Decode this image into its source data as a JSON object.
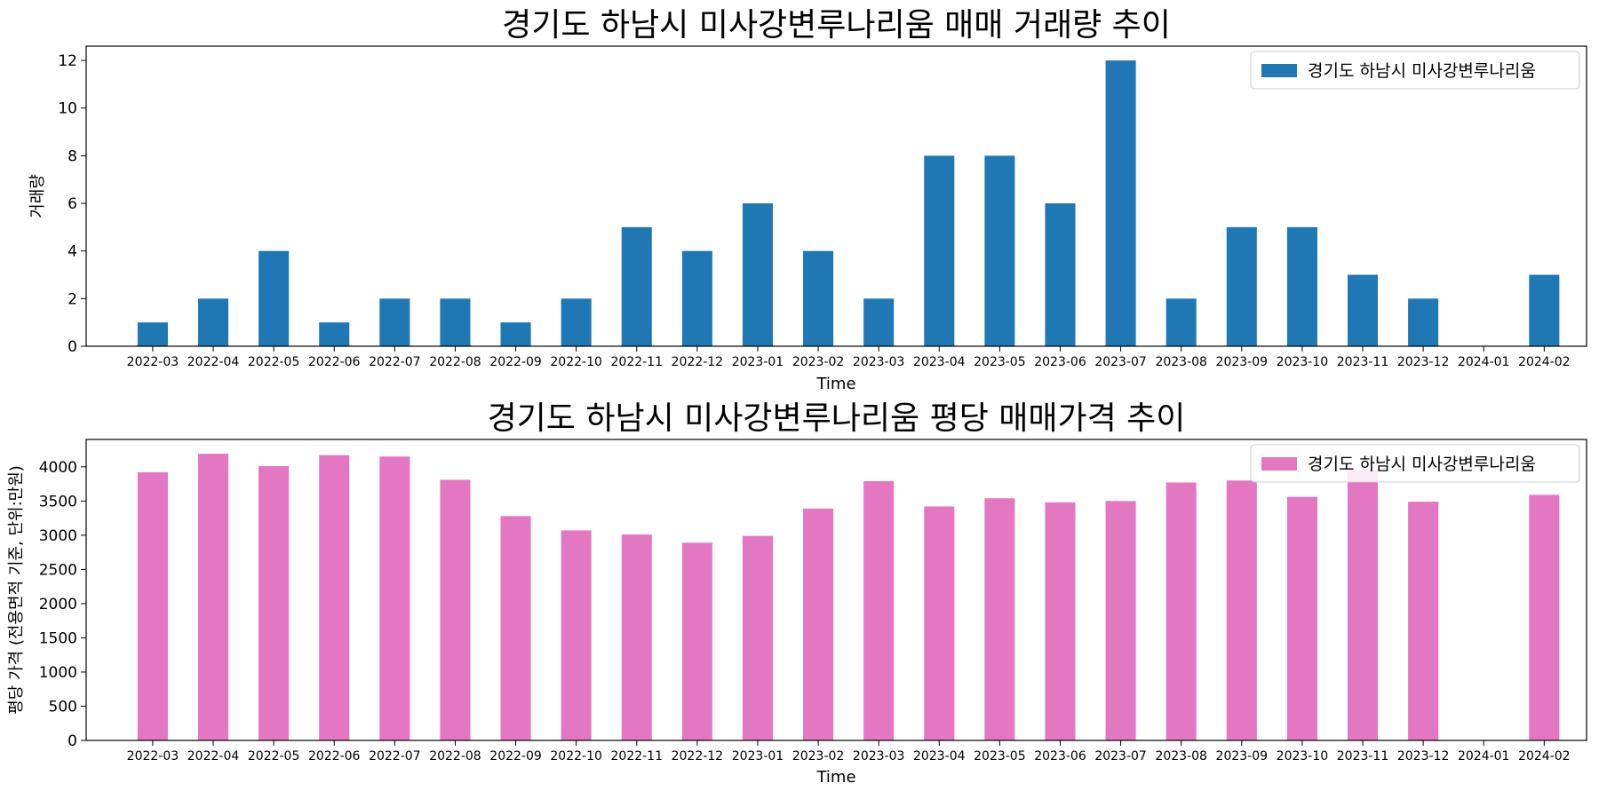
{
  "chart_data": [
    {
      "type": "bar",
      "title": "경기도 하남시 미사강변루나리움 매매 거래량 추이",
      "xlabel": "Time",
      "ylabel": "거래량",
      "categories": [
        "2022-03",
        "2022-04",
        "2022-05",
        "2022-06",
        "2022-07",
        "2022-08",
        "2022-09",
        "2022-10",
        "2022-11",
        "2022-12",
        "2023-01",
        "2023-02",
        "2023-03",
        "2023-04",
        "2023-05",
        "2023-06",
        "2023-07",
        "2023-08",
        "2023-09",
        "2023-10",
        "2023-11",
        "2023-12",
        "2024-01",
        "2024-02"
      ],
      "series": [
        {
          "name": "경기도 하남시 미사강변루나리움",
          "color": "#1f77b4",
          "values": [
            1,
            2,
            4,
            1,
            2,
            2,
            1,
            2,
            5,
            4,
            6,
            4,
            2,
            8,
            8,
            6,
            12,
            2,
            5,
            5,
            3,
            2,
            0,
            3
          ]
        }
      ],
      "ylim": [
        0,
        12.6
      ],
      "yticks": [
        0,
        2,
        4,
        6,
        8,
        10,
        12
      ],
      "grid": false,
      "legend_position": "top-right"
    },
    {
      "type": "bar",
      "title": "경기도 하남시 미사강변루나리움 평당 매매가격 추이",
      "xlabel": "Time",
      "ylabel": "평당 가격 (전용면적 기준, 단위:만원)",
      "categories": [
        "2022-03",
        "2022-04",
        "2022-05",
        "2022-06",
        "2022-07",
        "2022-08",
        "2022-09",
        "2022-10",
        "2022-11",
        "2022-12",
        "2023-01",
        "2023-02",
        "2023-03",
        "2023-04",
        "2023-05",
        "2023-06",
        "2023-07",
        "2023-08",
        "2023-09",
        "2023-10",
        "2023-11",
        "2023-12",
        "2024-01",
        "2024-02"
      ],
      "series": [
        {
          "name": "경기도 하남시 미사강변루나리움",
          "color": "#e377c2",
          "values": [
            3920,
            4190,
            4010,
            4170,
            4150,
            3810,
            3280,
            3070,
            3010,
            2890,
            2990,
            3390,
            3790,
            3420,
            3540,
            3480,
            3500,
            3770,
            3800,
            3560,
            3960,
            3490,
            0,
            3590
          ]
        }
      ],
      "ylim": [
        0,
        4400
      ],
      "yticks": [
        0,
        500,
        1000,
        1500,
        2000,
        2500,
        3000,
        3500,
        4000
      ],
      "grid": false,
      "legend_position": "top-right"
    }
  ]
}
